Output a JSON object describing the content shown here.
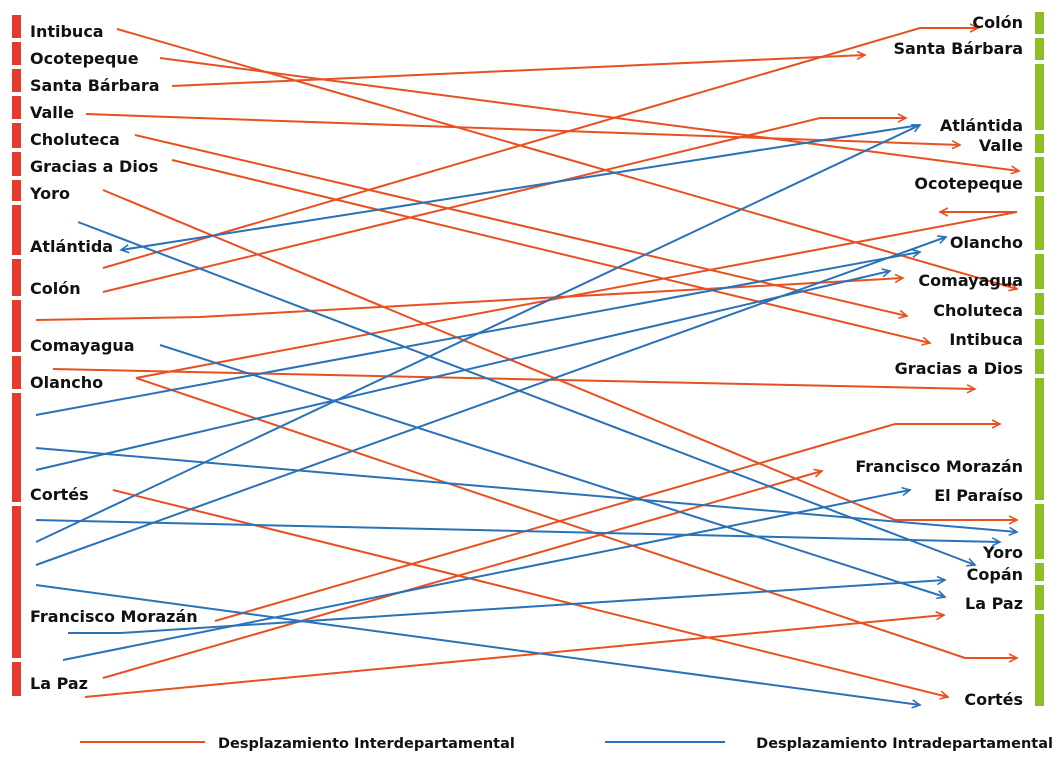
{
  "colors": {
    "inter": "#e8501f",
    "intra": "#2a72b8",
    "left_bar": "#e53a2e",
    "right_bar": "#8cbf26"
  },
  "left_labels": [
    "Intibuca",
    "Ocotepeque",
    "Santa Bárbara",
    "Valle",
    "Choluteca",
    "Gracias a Dios",
    "Yoro",
    "Atlántida",
    "Colón",
    "Comayagua",
    "Olancho",
    "Cortés",
    "Francisco Morazán",
    "La Paz"
  ],
  "right_labels": [
    "Colón",
    "Santa Bárbara",
    "Atlántida",
    "Valle",
    "Ocotepeque",
    "Olancho",
    "Comayagua",
    "Choluteca",
    "Intibuca",
    "Gracias a Dios",
    "Francisco Morazán",
    "El Paraíso",
    "Yoro",
    "Copán",
    "La Paz",
    "Cortés"
  ],
  "legend": {
    "inter": "Desplazamiento Interdepartamental",
    "intra": "Desplazamiento Intradepartamental"
  }
}
